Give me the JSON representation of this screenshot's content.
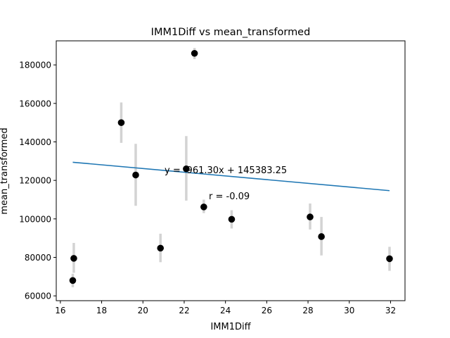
{
  "chart_data": {
    "type": "scatter",
    "title": "IMM1Diff vs mean_transformed",
    "xlabel": "IMM1Diff",
    "ylabel": "mean_transformed",
    "xlim": [
      15.8,
      32.7
    ],
    "ylim": [
      57500,
      192500
    ],
    "x_ticks": [
      16,
      18,
      20,
      22,
      24,
      26,
      28,
      30,
      32
    ],
    "y_ticks": [
      60000,
      80000,
      100000,
      120000,
      140000,
      160000,
      180000
    ],
    "grid": false,
    "colors": {
      "points": "#000000",
      "error_bars": "#d3d3d3",
      "fit_line": "#1f77b4"
    },
    "points": [
      {
        "x": 16.6,
        "y": 68000,
        "err_low": 64500,
        "err_high": 71500
      },
      {
        "x": 16.65,
        "y": 79500,
        "err_low": 72000,
        "err_high": 87500
      },
      {
        "x": 18.95,
        "y": 150000,
        "err_low": 139500,
        "err_high": 160500
      },
      {
        "x": 19.65,
        "y": 122800,
        "err_low": 106800,
        "err_high": 139000
      },
      {
        "x": 20.85,
        "y": 84800,
        "err_low": 77500,
        "err_high": 92300
      },
      {
        "x": 22.1,
        "y": 126000,
        "err_low": 109500,
        "err_high": 143000
      },
      {
        "x": 22.5,
        "y": 186000,
        "err_low": 183000,
        "err_high": 188800
      },
      {
        "x": 22.95,
        "y": 106200,
        "err_low": 103000,
        "err_high": 110000
      },
      {
        "x": 24.3,
        "y": 99800,
        "err_low": 95000,
        "err_high": 104500
      },
      {
        "x": 28.1,
        "y": 101000,
        "err_low": 94500,
        "err_high": 108000
      },
      {
        "x": 28.65,
        "y": 90800,
        "err_low": 81000,
        "err_high": 101000
      },
      {
        "x": 31.95,
        "y": 79300,
        "err_low": 73000,
        "err_high": 85500
      }
    ],
    "fit": {
      "slope": -961.3,
      "intercept": 145383.25,
      "x_range": [
        16.6,
        31.95
      ]
    },
    "annotations": {
      "equation": "y = -961.30x + 145383.25",
      "r": "r = -0.09"
    }
  }
}
